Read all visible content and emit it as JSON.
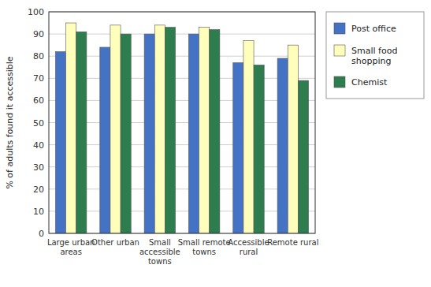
{
  "chart_data": {
    "type": "bar",
    "y_label": "% of adults found it accessible",
    "categories": [
      "Large urban\nareas",
      "Other urban",
      "Small\naccessible\ntowns",
      "Small remote\ntowns",
      "Accessible\nrural",
      "Remote rural"
    ],
    "series": [
      {
        "name": "Post office",
        "color": "#4472C4",
        "values": [
          82,
          84,
          90,
          90,
          77,
          79
        ]
      },
      {
        "name": "Small food\nshopping",
        "color": "#FFFFBB",
        "values": [
          95,
          94,
          94,
          93,
          87,
          85
        ]
      },
      {
        "name": "Chemist",
        "color": "#2E7D4F",
        "values": [
          91,
          90,
          93,
          92,
          76,
          69
        ]
      }
    ],
    "ylim": [
      0,
      100
    ],
    "yticks": [
      0,
      10,
      20,
      30,
      40,
      50,
      60,
      70,
      80,
      90,
      100
    ],
    "grid": true,
    "legend": "right"
  }
}
